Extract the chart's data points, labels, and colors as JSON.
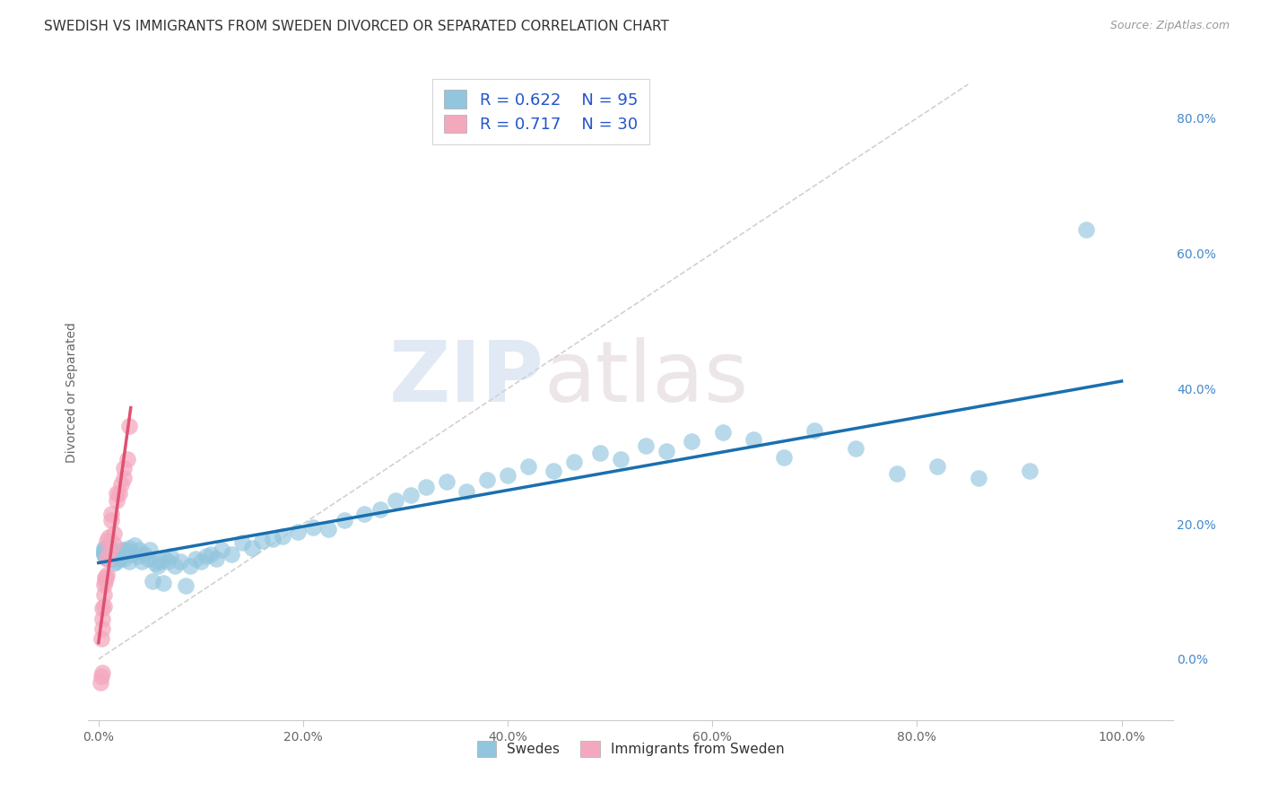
{
  "title": "SWEDISH VS IMMIGRANTS FROM SWEDEN DIVORCED OR SEPARATED CORRELATION CHART",
  "source": "Source: ZipAtlas.com",
  "xlabel_ticks": [
    "0.0%",
    "20.0%",
    "40.0%",
    "60.0%",
    "80.0%",
    "100.0%"
  ],
  "xlabel_vals": [
    0.0,
    0.2,
    0.4,
    0.6,
    0.8,
    1.0
  ],
  "ylabel_ticks": [
    "0.0%",
    "20.0%",
    "40.0%",
    "60.0%",
    "80.0%"
  ],
  "ylabel_vals": [
    0.0,
    0.2,
    0.4,
    0.6,
    0.8
  ],
  "xlim": [
    -0.01,
    1.05
  ],
  "ylim": [
    -0.09,
    0.88
  ],
  "legend_labels": [
    "Swedes",
    "Immigrants from Sweden"
  ],
  "legend_R": [
    0.622,
    0.717
  ],
  "legend_N": [
    95,
    30
  ],
  "blue_color": "#92c5de",
  "pink_color": "#f4a8be",
  "blue_line_color": "#1a6faf",
  "pink_line_color": "#e05070",
  "diag_line_color": "#cccccc",
  "watermark_zip": "ZIP",
  "watermark_atlas": "atlas",
  "title_fontsize": 11,
  "source_fontsize": 9,
  "axis_label_fontsize": 10,
  "tick_fontsize": 10,
  "swedes_x": [
    0.005,
    0.005,
    0.005,
    0.005,
    0.005,
    0.005,
    0.007,
    0.007,
    0.007,
    0.007,
    0.01,
    0.01,
    0.01,
    0.01,
    0.01,
    0.012,
    0.012,
    0.012,
    0.015,
    0.015,
    0.015,
    0.018,
    0.018,
    0.02,
    0.02,
    0.022,
    0.022,
    0.025,
    0.025,
    0.028,
    0.03,
    0.03,
    0.033,
    0.035,
    0.038,
    0.04,
    0.042,
    0.045,
    0.048,
    0.05,
    0.053,
    0.055,
    0.058,
    0.06,
    0.063,
    0.065,
    0.068,
    0.07,
    0.075,
    0.08,
    0.085,
    0.09,
    0.095,
    0.1,
    0.105,
    0.11,
    0.115,
    0.12,
    0.13,
    0.14,
    0.15,
    0.16,
    0.17,
    0.18,
    0.195,
    0.21,
    0.225,
    0.24,
    0.26,
    0.275,
    0.29,
    0.305,
    0.32,
    0.34,
    0.36,
    0.38,
    0.4,
    0.42,
    0.445,
    0.465,
    0.49,
    0.51,
    0.535,
    0.555,
    0.58,
    0.61,
    0.64,
    0.67,
    0.7,
    0.74,
    0.78,
    0.82,
    0.86,
    0.91,
    0.965
  ],
  "swedes_y": [
    0.155,
    0.158,
    0.162,
    0.155,
    0.158,
    0.165,
    0.15,
    0.155,
    0.16,
    0.165,
    0.148,
    0.152,
    0.158,
    0.162,
    0.168,
    0.148,
    0.155,
    0.162,
    0.142,
    0.15,
    0.16,
    0.145,
    0.155,
    0.148,
    0.158,
    0.152,
    0.162,
    0.148,
    0.162,
    0.16,
    0.145,
    0.165,
    0.155,
    0.168,
    0.152,
    0.162,
    0.145,
    0.155,
    0.148,
    0.162,
    0.115,
    0.142,
    0.138,
    0.145,
    0.112,
    0.148,
    0.145,
    0.152,
    0.138,
    0.145,
    0.108,
    0.138,
    0.148,
    0.145,
    0.152,
    0.155,
    0.148,
    0.162,
    0.155,
    0.172,
    0.165,
    0.175,
    0.178,
    0.182,
    0.188,
    0.195,
    0.192,
    0.205,
    0.215,
    0.222,
    0.235,
    0.242,
    0.255,
    0.262,
    0.248,
    0.265,
    0.272,
    0.285,
    0.278,
    0.292,
    0.305,
    0.295,
    0.315,
    0.308,
    0.322,
    0.335,
    0.325,
    0.298,
    0.338,
    0.312,
    0.275,
    0.285,
    0.268,
    0.278,
    0.635
  ],
  "immigrants_x": [
    0.002,
    0.003,
    0.003,
    0.004,
    0.004,
    0.004,
    0.004,
    0.005,
    0.005,
    0.005,
    0.006,
    0.006,
    0.007,
    0.008,
    0.008,
    0.008,
    0.01,
    0.01,
    0.012,
    0.012,
    0.015,
    0.015,
    0.018,
    0.018,
    0.02,
    0.022,
    0.025,
    0.025,
    0.028,
    0.03
  ],
  "immigrants_y": [
    -0.035,
    -0.025,
    0.03,
    -0.02,
    0.045,
    0.06,
    0.075,
    0.078,
    0.095,
    0.11,
    0.115,
    0.12,
    0.12,
    0.125,
    0.148,
    0.175,
    0.155,
    0.18,
    0.205,
    0.215,
    0.17,
    0.185,
    0.235,
    0.245,
    0.245,
    0.258,
    0.268,
    0.282,
    0.295,
    0.345
  ]
}
